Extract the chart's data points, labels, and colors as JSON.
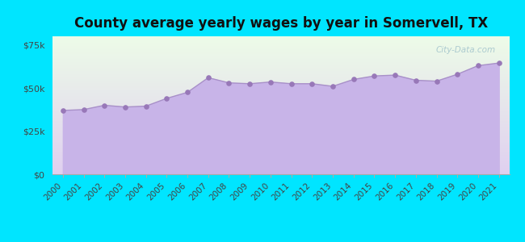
{
  "title": "County average yearly wages by year in Somervell, TX",
  "years": [
    2000,
    2001,
    2002,
    2003,
    2004,
    2005,
    2006,
    2007,
    2008,
    2009,
    2010,
    2011,
    2012,
    2013,
    2014,
    2015,
    2016,
    2017,
    2018,
    2019,
    2020,
    2021
  ],
  "values": [
    37000,
    37500,
    40000,
    39000,
    39500,
    44000,
    47500,
    56000,
    53000,
    52500,
    53500,
    52500,
    52500,
    51000,
    55000,
    57000,
    57500,
    54500,
    54000,
    58000,
    63000,
    64500
  ],
  "background_color": "#00e5ff",
  "fill_color": "#c8b4e8",
  "line_color": "#a890c8",
  "dot_color": "#9878b8",
  "plot_bg_top": "#edfce8",
  "plot_bg_bottom": "#e0d0f0",
  "ylim": [
    0,
    80000
  ],
  "yticks": [
    0,
    25000,
    50000,
    75000
  ],
  "ytick_labels": [
    "$0",
    "$25k",
    "$50k",
    "$75k"
  ],
  "title_fontsize": 12,
  "watermark": "City-Data.com"
}
